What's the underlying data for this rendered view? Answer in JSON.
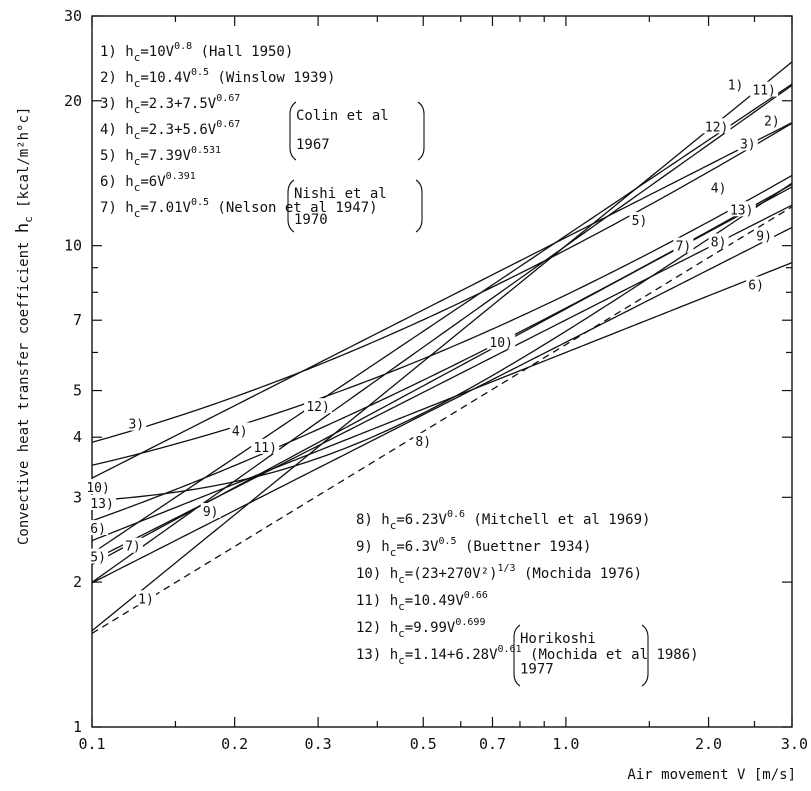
{
  "chart_data": {
    "type": "line",
    "x_scale": "log",
    "y_scale": "log",
    "xlim": [
      0.1,
      3.0
    ],
    "ylim": [
      1,
      30
    ],
    "grid": false,
    "xlabel": "Air movement  V  [m/s]",
    "ylabel": "Convective heat transfer coefficient",
    "ylabel_symbol": "h",
    "ylabel_symbol_sub": "c",
    "ylabel_unit": "[kcal/m²h°c]",
    "x_ticks": [
      {
        "value": 0.1,
        "label": "0.1"
      },
      {
        "value": 0.2,
        "label": "0.2"
      },
      {
        "value": 0.3,
        "label": "0.3"
      },
      {
        "value": 0.5,
        "label": "0.5"
      },
      {
        "value": 0.7,
        "label": "0.7"
      },
      {
        "value": 1.0,
        "label": "1.0"
      },
      {
        "value": 2.0,
        "label": "2.0"
      },
      {
        "value": 3.0,
        "label": "3.0"
      }
    ],
    "y_ticks": [
      {
        "value": 1,
        "label": "1"
      },
      {
        "value": 2,
        "label": "2"
      },
      {
        "value": 3,
        "label": "3"
      },
      {
        "value": 4,
        "label": "4"
      },
      {
        "value": 5,
        "label": "5"
      },
      {
        "value": 7,
        "label": "7"
      },
      {
        "value": 10,
        "label": "10"
      },
      {
        "value": 20,
        "label": "20"
      },
      {
        "value": 30,
        "label": "30"
      }
    ],
    "series": [
      {
        "id": 1,
        "label": "1)",
        "formula": "10*V^0.8",
        "x_range": [
          0.1,
          3.0
        ],
        "label_x": 0.13,
        "label_y": 1.85,
        "dashed": false
      },
      {
        "id": 2,
        "label": "2)",
        "formula": "10.4*V^0.5",
        "x_range": [
          0.1,
          3.0
        ],
        "label_x": 2.72,
        "label_y": 18.2,
        "dashed": false
      },
      {
        "id": 3,
        "label": "3)",
        "formula": "2.3+7.5*V^0.67",
        "x_range": [
          0.1,
          3.0
        ],
        "label_x": 0.124,
        "label_y": 4.27,
        "dashed": false
      },
      {
        "id": 4,
        "label": "4)",
        "formula": "2.3+5.6*V^0.67",
        "x_range": [
          0.1,
          3.0
        ],
        "label_x": 0.205,
        "label_y": 4.13,
        "dashed": false
      },
      {
        "id": 5,
        "label": "5)",
        "formula": "7.39*V^0.531",
        "x_range": [
          0.1,
          3.0
        ],
        "label_x": 0.103,
        "label_y": 2.26,
        "dashed": false
      },
      {
        "id": 6,
        "label": "6)",
        "formula": "6*V^0.391",
        "x_range": [
          0.1,
          3.0
        ],
        "label_x": 0.103,
        "label_y": 2.59,
        "dashed": false
      },
      {
        "id": 7,
        "label": "7)",
        "formula": "7.01*V^0.5",
        "x_range": [
          0.1,
          3.0
        ],
        "label_x": 0.122,
        "label_y": 2.38,
        "dashed": false
      },
      {
        "id": 8,
        "label": "8)",
        "formula": "6.23*V^0.6",
        "x_range": [
          0.1,
          3.0
        ],
        "label_x": 0.5,
        "label_y": 3.93,
        "dashed": true
      },
      {
        "id": 9,
        "label": "9)",
        "formula": "6.3*V^0.5",
        "x_range": [
          0.1,
          3.0
        ],
        "label_x": 0.178,
        "label_y": 2.81,
        "dashed": false
      },
      {
        "id": 10,
        "label": "10)",
        "formula": "(23+270*V^2)^(1/3)",
        "x_range": [
          0.1,
          3.0
        ],
        "label_x": 0.103,
        "label_y": 3.15,
        "dashed": false
      },
      {
        "id": 11,
        "label": "11)",
        "formula": "10.49*V^0.66",
        "x_range": [
          0.1,
          3.0
        ],
        "label_x": 0.232,
        "label_y": 3.82,
        "dashed": false
      },
      {
        "id": 12,
        "label": "12)",
        "formula": "9.99*V^0.699",
        "x_range": [
          0.1,
          3.0
        ],
        "label_x": 0.3,
        "label_y": 4.64,
        "dashed": false
      },
      {
        "id": 13,
        "label": "13)",
        "formula": "1.14+6.28*V^0.61",
        "x_range": [
          0.1,
          3.0
        ],
        "label_x": 0.105,
        "label_y": 2.92,
        "dashed": false
      }
    ],
    "curve_end_labels": [
      {
        "series": 1,
        "label": "1)",
        "x": 2.28,
        "y": 21.6
      },
      {
        "series": 11,
        "label": "11)",
        "x": 2.62,
        "y": 21.1
      },
      {
        "series": 12,
        "label": "12)",
        "x": 2.08,
        "y": 17.7
      },
      {
        "series": 3,
        "label": "3)",
        "x": 2.42,
        "y": 16.3
      },
      {
        "series": 4,
        "label": "4)",
        "x": 2.1,
        "y": 13.2
      },
      {
        "series": 13,
        "label": "13)",
        "x": 2.35,
        "y": 11.9
      },
      {
        "series": 5,
        "label": "5)",
        "x": 1.43,
        "y": 11.3
      },
      {
        "series": 7,
        "label": "7)",
        "x": 1.77,
        "y": 10.0
      },
      {
        "series": 8,
        "label": "8)",
        "x": 2.1,
        "y": 10.2
      },
      {
        "series": 9,
        "label": "9)",
        "x": 2.62,
        "y": 10.5
      },
      {
        "series": 6,
        "label": "6)",
        "x": 2.52,
        "y": 8.3
      },
      {
        "series": 10,
        "label": "10)",
        "x": 0.73,
        "y": 6.3
      }
    ],
    "legend_top": {
      "placement": "top-left",
      "items": [
        {
          "num": "1)",
          "formula": "h",
          "sub": "c",
          "rest": "=10V",
          "exp": "0.8",
          "ref": "(Hall 1950)"
        },
        {
          "num": "2)",
          "formula": "h",
          "sub": "c",
          "rest": "=10.4V",
          "exp": "0.5",
          "ref": "(Winslow 1939)"
        },
        {
          "num": "3)",
          "formula": "h",
          "sub": "c",
          "rest": "=2.3+7.5V",
          "exp": "0.67",
          "ref": ""
        },
        {
          "num": "4)",
          "formula": "h",
          "sub": "c",
          "rest": "=2.3+5.6V",
          "exp": "0.67",
          "ref": ""
        },
        {
          "num": "5)",
          "formula": "h",
          "sub": "c",
          "rest": "=7.39V",
          "exp": "0.531",
          "ref": ""
        },
        {
          "num": "6)",
          "formula": "h",
          "sub": "c",
          "rest": "=6V",
          "exp": "0.391",
          "ref": ""
        },
        {
          "num": "7)",
          "formula": "h",
          "sub": "c",
          "rest": "=7.01V",
          "exp": "0.5",
          "ref": "(Nelson et al 1947)"
        }
      ],
      "groups": [
        {
          "lines": [
            "Colin et al",
            "1967"
          ]
        },
        {
          "lines": [
            "Nishi et al",
            "1970"
          ]
        }
      ]
    },
    "legend_bottom": {
      "placement": "bottom-right",
      "items": [
        {
          "num": "8)",
          "formula": "h",
          "sub": "c",
          "rest": "=6.23V",
          "exp": "0.6",
          "ref": "(Mitchell et al 1969)"
        },
        {
          "num": "9)",
          "formula": "h",
          "sub": "c",
          "rest": "=6.3V",
          "exp": "0.5",
          "ref": "(Buettner 1934)"
        },
        {
          "num": "10)",
          "formula": "h",
          "sub": "c",
          "rest": "=(23+270V²)",
          "exp": "1/3",
          "ref": "(Mochida 1976)"
        },
        {
          "num": "11)",
          "formula": "h",
          "sub": "c",
          "rest": "=10.49V",
          "exp": "0.66",
          "ref": ""
        },
        {
          "num": "12)",
          "formula": "h",
          "sub": "c",
          "rest": "=9.99V",
          "exp": "0.699",
          "ref": ""
        },
        {
          "num": "13)",
          "formula": "h",
          "sub": "c",
          "rest": "=1.14+6.28V",
          "exp": "0.61",
          "ref": "(Mochida et al 1986)"
        }
      ],
      "groups": [
        {
          "lines": [
            "Horikoshi",
            "1977"
          ]
        }
      ]
    }
  }
}
